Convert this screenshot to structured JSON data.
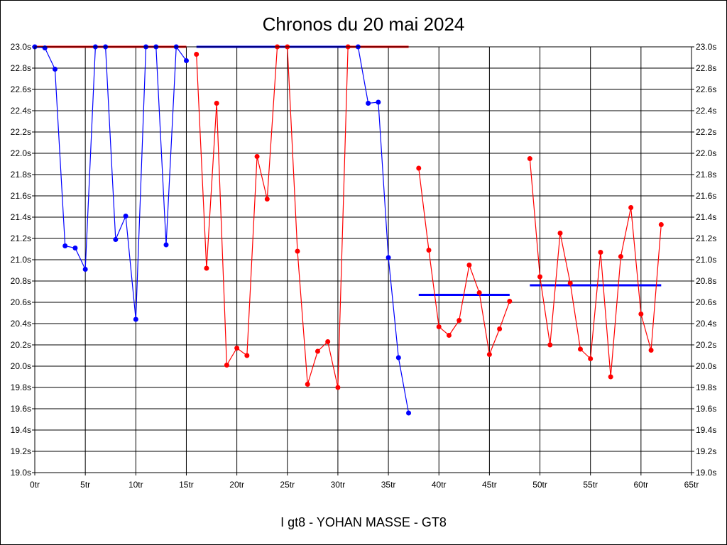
{
  "chart_data": {
    "type": "line",
    "title": "Chronos du 20 mai 2024",
    "xlabel": "I gt8 - YOHAN MASSE - GT8",
    "ylabel": "",
    "xlim": [
      0,
      65
    ],
    "ylim": [
      19.0,
      23.0
    ],
    "grid": true,
    "x_tick_labels": [
      "0tr",
      "5tr",
      "10tr",
      "15tr",
      "20tr",
      "25tr",
      "30tr",
      "35tr",
      "40tr",
      "45tr",
      "50tr",
      "55tr",
      "60tr",
      "65tr"
    ],
    "x_ticks": [
      0,
      5,
      10,
      15,
      20,
      25,
      30,
      35,
      40,
      45,
      50,
      55,
      60,
      65
    ],
    "y_tick_labels": [
      "19.0s",
      "19.2s",
      "19.4s",
      "19.6s",
      "19.8s",
      "20.0s",
      "20.2s",
      "20.4s",
      "20.6s",
      "20.8s",
      "21.0s",
      "21.2s",
      "21.4s",
      "21.6s",
      "21.8s",
      "22.0s",
      "22.2s",
      "22.4s",
      "22.6s",
      "22.8s",
      "23.0s"
    ],
    "y_ticks": [
      19.0,
      19.2,
      19.4,
      19.6,
      19.8,
      20.0,
      20.2,
      20.4,
      20.6,
      20.8,
      21.0,
      21.2,
      21.4,
      21.6,
      21.8,
      22.0,
      22.2,
      22.4,
      22.6,
      22.8,
      23.0
    ],
    "series": [
      {
        "name": "stint-1",
        "color": "#0000ff",
        "x": [
          0,
          1,
          2,
          3,
          4,
          5,
          6,
          7,
          8,
          9,
          10,
          11,
          12,
          13,
          14,
          15
        ],
        "y": [
          23.0,
          22.99,
          22.79,
          21.13,
          21.11,
          20.91,
          23.0,
          23.0,
          21.19,
          21.41,
          20.44,
          23.0,
          23.0,
          21.14,
          23.0,
          22.87
        ]
      },
      {
        "name": "stint-2",
        "color": "#ff0000",
        "x": [
          16,
          17,
          18,
          19,
          20,
          21,
          22,
          23,
          24,
          25,
          26,
          27,
          28,
          29,
          30,
          31
        ],
        "y": [
          22.93,
          20.92,
          22.47,
          20.01,
          20.17,
          20.1,
          21.97,
          21.57,
          23.0,
          23.0,
          21.08,
          19.83,
          20.14,
          20.23,
          19.8,
          23.0
        ]
      },
      {
        "name": "stint-3",
        "color": "#0000ff",
        "x": [
          32,
          33,
          34,
          35,
          36,
          37
        ],
        "y": [
          23.0,
          22.47,
          22.48,
          21.02,
          20.08,
          19.56
        ]
      },
      {
        "name": "stint-4",
        "color": "#ff0000",
        "x": [
          38,
          39,
          40,
          41,
          42,
          43,
          44,
          45,
          46,
          47
        ],
        "y": [
          21.86,
          21.09,
          20.37,
          20.29,
          20.43,
          20.95,
          20.69,
          20.11,
          20.35,
          20.61
        ]
      },
      {
        "name": "stint-5",
        "color": "#ff0000",
        "x": [
          49,
          50,
          51,
          52,
          53,
          54,
          55,
          56,
          57,
          58,
          59,
          60,
          61,
          62
        ],
        "y": [
          21.95,
          20.84,
          20.2,
          21.25,
          20.78,
          20.16,
          20.07,
          21.07,
          19.9,
          21.03,
          21.49,
          20.49,
          20.15,
          21.33
        ]
      }
    ],
    "average_lines": [
      {
        "color": "#ff0000",
        "x": [
          0,
          15
        ],
        "y": 23.0
      },
      {
        "color": "#0000ff",
        "x": [
          16,
          31
        ],
        "y": 23.0
      },
      {
        "color": "#ff0000",
        "x": [
          31,
          37
        ],
        "y": 23.0
      },
      {
        "color": "#0000ff",
        "x": [
          38,
          47
        ],
        "y": 20.67
      },
      {
        "color": "#0000ff",
        "x": [
          49,
          62
        ],
        "y": 20.76
      }
    ]
  }
}
